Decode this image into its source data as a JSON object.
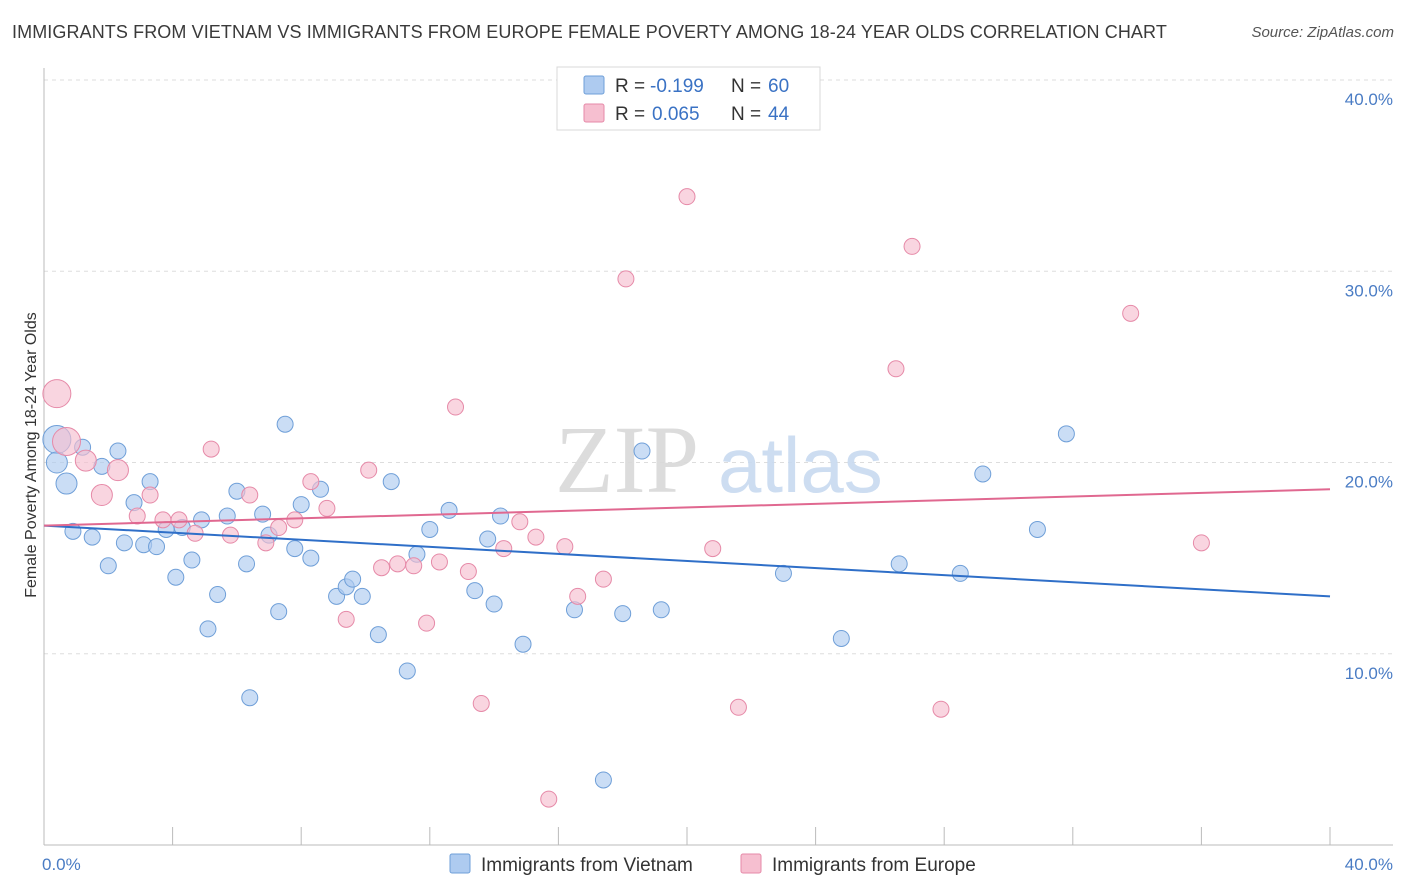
{
  "title": "IMMIGRANTS FROM VIETNAM VS IMMIGRANTS FROM EUROPE FEMALE POVERTY AMONG 18-24 YEAR OLDS CORRELATION CHART",
  "source": "Source: ZipAtlas.com",
  "watermark": {
    "zip": "ZIP",
    "atlas": "atlas"
  },
  "colors": {
    "vietnam_fill": "#aecbf0",
    "vietnam_stroke": "#6f9fd8",
    "vietnam_line": "#2f6fc8",
    "europe_fill": "#f6bfd0",
    "europe_stroke": "#e68aa8",
    "europe_line": "#e06890",
    "tick": "#4a7cc4",
    "grid": "#dddddd"
  },
  "legend": {
    "rows": [
      {
        "r_label": "R = ",
        "r_value": "-0.199",
        "n_label": "N = ",
        "n_value": "60"
      },
      {
        "r_label": "R = ",
        "r_value": "0.065",
        "n_label": "N = ",
        "n_value": "44"
      }
    ]
  },
  "chart_data": {
    "type": "scatter",
    "title": "IMMIGRANTS FROM VIETNAM VS IMMIGRANTS FROM EUROPE FEMALE POVERTY AMONG 18-24 YEAR OLDS CORRELATION CHART",
    "xlabel": "",
    "ylabel": "Female Poverty Among 18-24 Year Olds",
    "xlim": [
      0,
      40
    ],
    "ylim": [
      0,
      40
    ],
    "x_ticks": [
      "0.0%",
      "40.0%"
    ],
    "y_ticks": [
      {
        "value": 10,
        "label": "10.0%"
      },
      {
        "value": 20,
        "label": "20.0%"
      },
      {
        "value": 30,
        "label": "30.0%"
      },
      {
        "value": 40,
        "label": "40.0%"
      }
    ],
    "grid": true,
    "legend_position": "top-center",
    "series": [
      {
        "name": "Immigrants from Vietnam",
        "r": -0.199,
        "n": 60,
        "trend": {
          "x": [
            0,
            40
          ],
          "y": [
            16.7,
            13.0
          ]
        },
        "points": [
          {
            "x": 0.4,
            "y": 21.2,
            "s": 3
          },
          {
            "x": 0.4,
            "y": 20.0,
            "s": 2
          },
          {
            "x": 0.7,
            "y": 18.9,
            "s": 2
          },
          {
            "x": 0.9,
            "y": 16.4
          },
          {
            "x": 1.2,
            "y": 20.8
          },
          {
            "x": 1.5,
            "y": 16.1
          },
          {
            "x": 1.8,
            "y": 19.8
          },
          {
            "x": 2.0,
            "y": 14.6
          },
          {
            "x": 2.3,
            "y": 20.6
          },
          {
            "x": 2.5,
            "y": 15.8
          },
          {
            "x": 2.8,
            "y": 17.9
          },
          {
            "x": 3.1,
            "y": 15.7
          },
          {
            "x": 3.3,
            "y": 19.0
          },
          {
            "x": 3.5,
            "y": 15.6
          },
          {
            "x": 3.8,
            "y": 16.5
          },
          {
            "x": 4.1,
            "y": 14.0
          },
          {
            "x": 4.3,
            "y": 16.6
          },
          {
            "x": 4.6,
            "y": 14.9
          },
          {
            "x": 4.9,
            "y": 17.0
          },
          {
            "x": 5.1,
            "y": 11.3
          },
          {
            "x": 5.4,
            "y": 13.1
          },
          {
            "x": 5.7,
            "y": 17.2
          },
          {
            "x": 6.0,
            "y": 18.5
          },
          {
            "x": 6.3,
            "y": 14.7
          },
          {
            "x": 6.4,
            "y": 7.7
          },
          {
            "x": 6.8,
            "y": 17.3
          },
          {
            "x": 7.0,
            "y": 16.2
          },
          {
            "x": 7.3,
            "y": 12.2
          },
          {
            "x": 7.5,
            "y": 22.0
          },
          {
            "x": 7.8,
            "y": 15.5
          },
          {
            "x": 8.0,
            "y": 17.8
          },
          {
            "x": 8.3,
            "y": 15.0
          },
          {
            "x": 8.6,
            "y": 18.6
          },
          {
            "x": 9.1,
            "y": 13.0
          },
          {
            "x": 9.4,
            "y": 13.5
          },
          {
            "x": 9.6,
            "y": 13.9
          },
          {
            "x": 9.9,
            "y": 13.0
          },
          {
            "x": 10.4,
            "y": 11.0
          },
          {
            "x": 10.8,
            "y": 19.0
          },
          {
            "x": 11.3,
            "y": 9.1
          },
          {
            "x": 11.6,
            "y": 15.2
          },
          {
            "x": 12.0,
            "y": 16.5
          },
          {
            "x": 12.6,
            "y": 17.5
          },
          {
            "x": 13.4,
            "y": 13.3
          },
          {
            "x": 13.8,
            "y": 16.0
          },
          {
            "x": 14.0,
            "y": 12.6
          },
          {
            "x": 14.2,
            "y": 17.2
          },
          {
            "x": 14.9,
            "y": 10.5
          },
          {
            "x": 16.5,
            "y": 12.3
          },
          {
            "x": 17.4,
            "y": 3.4
          },
          {
            "x": 18.0,
            "y": 12.1
          },
          {
            "x": 18.6,
            "y": 20.6
          },
          {
            "x": 19.2,
            "y": 12.3
          },
          {
            "x": 23.0,
            "y": 14.2
          },
          {
            "x": 24.8,
            "y": 10.8
          },
          {
            "x": 26.6,
            "y": 14.7
          },
          {
            "x": 28.5,
            "y": 14.2
          },
          {
            "x": 29.2,
            "y": 19.4
          },
          {
            "x": 30.9,
            "y": 16.5
          },
          {
            "x": 31.8,
            "y": 21.5
          }
        ]
      },
      {
        "name": "Immigrants from Europe",
        "r": 0.065,
        "n": 44,
        "trend": {
          "x": [
            0,
            40
          ],
          "y": [
            16.7,
            18.6
          ]
        },
        "points": [
          {
            "x": 0.4,
            "y": 23.6,
            "s": 3
          },
          {
            "x": 0.7,
            "y": 21.1,
            "s": 3
          },
          {
            "x": 1.3,
            "y": 20.1,
            "s": 2
          },
          {
            "x": 1.8,
            "y": 18.3,
            "s": 2
          },
          {
            "x": 2.3,
            "y": 19.6,
            "s": 2
          },
          {
            "x": 2.9,
            "y": 17.2
          },
          {
            "x": 3.3,
            "y": 18.3
          },
          {
            "x": 3.7,
            "y": 17.0
          },
          {
            "x": 4.2,
            "y": 17.0
          },
          {
            "x": 4.7,
            "y": 16.3
          },
          {
            "x": 5.2,
            "y": 20.7
          },
          {
            "x": 5.8,
            "y": 16.2
          },
          {
            "x": 6.4,
            "y": 18.3
          },
          {
            "x": 6.9,
            "y": 15.8
          },
          {
            "x": 7.3,
            "y": 16.6
          },
          {
            "x": 7.8,
            "y": 17.0
          },
          {
            "x": 8.3,
            "y": 19.0
          },
          {
            "x": 8.8,
            "y": 17.6
          },
          {
            "x": 9.4,
            "y": 11.8
          },
          {
            "x": 10.1,
            "y": 19.6
          },
          {
            "x": 10.5,
            "y": 14.5
          },
          {
            "x": 11.0,
            "y": 14.7
          },
          {
            "x": 11.5,
            "y": 14.6
          },
          {
            "x": 11.9,
            "y": 11.6
          },
          {
            "x": 12.3,
            "y": 14.8
          },
          {
            "x": 12.8,
            "y": 22.9
          },
          {
            "x": 13.2,
            "y": 14.3
          },
          {
            "x": 13.6,
            "y": 7.4
          },
          {
            "x": 14.3,
            "y": 15.5
          },
          {
            "x": 14.8,
            "y": 16.9
          },
          {
            "x": 15.3,
            "y": 16.1
          },
          {
            "x": 15.7,
            "y": 2.4
          },
          {
            "x": 16.2,
            "y": 15.6
          },
          {
            "x": 16.6,
            "y": 13.0
          },
          {
            "x": 17.4,
            "y": 13.9
          },
          {
            "x": 18.1,
            "y": 29.6
          },
          {
            "x": 20.0,
            "y": 33.9
          },
          {
            "x": 20.8,
            "y": 15.5
          },
          {
            "x": 21.6,
            "y": 7.2
          },
          {
            "x": 26.5,
            "y": 24.9
          },
          {
            "x": 27.0,
            "y": 31.3
          },
          {
            "x": 27.9,
            "y": 7.1
          },
          {
            "x": 33.8,
            "y": 27.8
          },
          {
            "x": 36.0,
            "y": 15.8
          }
        ]
      }
    ]
  }
}
